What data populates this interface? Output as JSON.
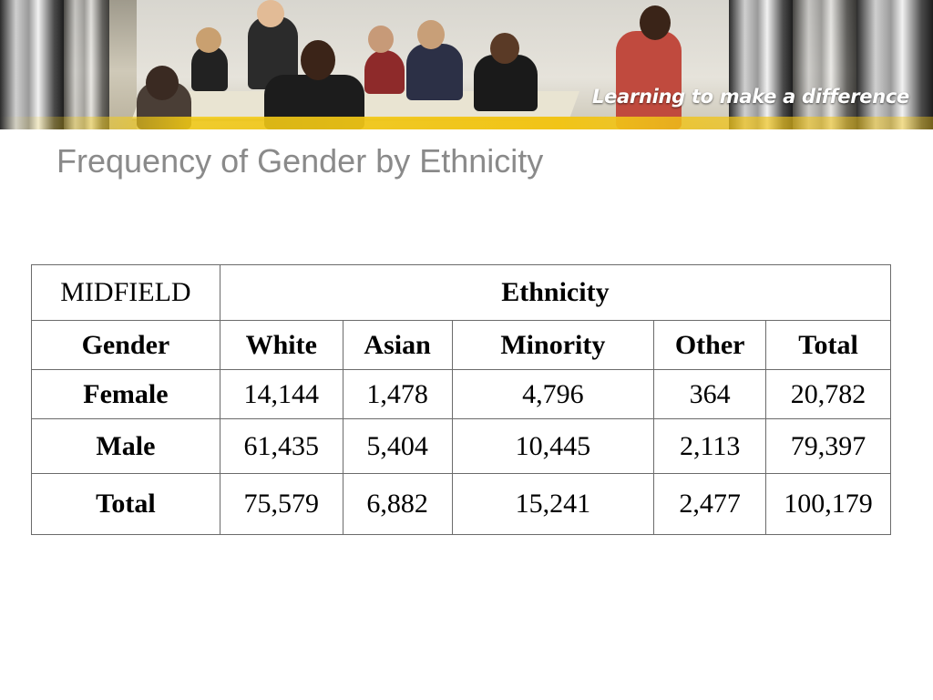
{
  "banner": {
    "tagline": "Learning to make a difference"
  },
  "slide": {
    "title": "Frequency of Gender by Ethnicity"
  },
  "table": {
    "corner_label": "MIDFIELD",
    "group_header": "Ethnicity",
    "column_headers": [
      "Gender",
      "White",
      "Asian",
      "Minority",
      "Other",
      "Total"
    ],
    "rows": [
      {
        "label": "Female",
        "values": [
          "14,144",
          "1,478",
          "4,796",
          "364",
          "20,782"
        ]
      },
      {
        "label": "Male",
        "values": [
          "61,435",
          "5,404",
          "10,445",
          "2,113",
          "79,397"
        ]
      },
      {
        "label": "Total",
        "values": [
          "75,579",
          "6,882",
          "15,241",
          "2,477",
          "100,179"
        ]
      }
    ]
  },
  "colors": {
    "title_gray": "#8a8a8a",
    "banner_yellow": "#f1c417",
    "table_border": "#6b6b6b"
  }
}
